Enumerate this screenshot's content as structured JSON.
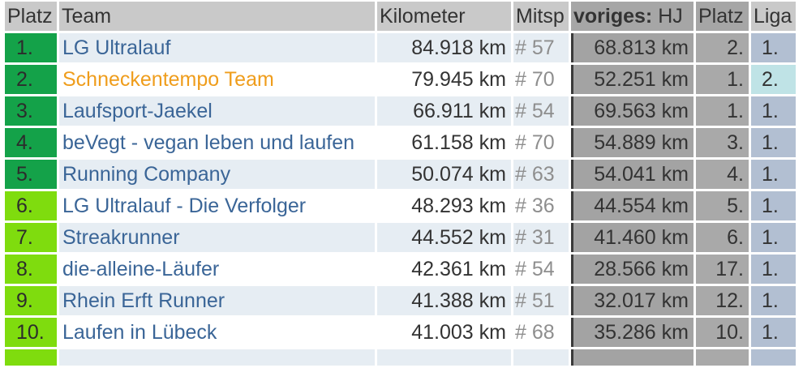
{
  "headers": {
    "platz": "Platz",
    "team": "Team",
    "km": "Kilometer",
    "mitsp": "Mitsp",
    "prev_bold": "voriges:",
    "prev_rest": " HJ",
    "prev_platz": "Platz",
    "liga": "Liga"
  },
  "colors": {
    "dark_green": "#14a249",
    "light_green": "#7fdc0e",
    "team_link": "#3a6597",
    "highlight_team": "#ef9d1c"
  },
  "rows": [
    {
      "platz": "1.",
      "team": "LG Ultralauf",
      "km": "84.918 km",
      "mitsp": "# 57",
      "prev_km": "68.813 km",
      "prev_platz": "2.",
      "liga": "1."
    },
    {
      "platz": "2.",
      "team": "Schneckentempo Team",
      "km": "79.945 km",
      "mitsp": "# 70",
      "prev_km": "52.251 km",
      "prev_platz": "1.",
      "liga": "2."
    },
    {
      "platz": "3.",
      "team": "Laufsport-Jaekel",
      "km": "66.911 km",
      "mitsp": "# 54",
      "prev_km": "69.563 km",
      "prev_platz": "1.",
      "liga": "1."
    },
    {
      "platz": "4.",
      "team": "beVegt - vegan leben und laufen",
      "km": "61.158 km",
      "mitsp": "# 70",
      "prev_km": "54.889 km",
      "prev_platz": "3.",
      "liga": "1."
    },
    {
      "platz": "5.",
      "team": "Running Company",
      "km": "50.074 km",
      "mitsp": "# 63",
      "prev_km": "54.041 km",
      "prev_platz": "4.",
      "liga": "1."
    },
    {
      "platz": "6.",
      "team": "LG Ultralauf - Die Verfolger",
      "km": "48.293 km",
      "mitsp": "# 36",
      "prev_km": "44.554 km",
      "prev_platz": "5.",
      "liga": "1."
    },
    {
      "platz": "7.",
      "team": "Streakrunner",
      "km": "44.552 km",
      "mitsp": "# 31",
      "prev_km": "41.460 km",
      "prev_platz": "6.",
      "liga": "1."
    },
    {
      "platz": "8.",
      "team": "die-alleine-Läufer",
      "km": "42.361 km",
      "mitsp": "# 54",
      "prev_km": "28.566 km",
      "prev_platz": "17.",
      "liga": "1."
    },
    {
      "platz": "9.",
      "team": "Rhein Erft Runner",
      "km": "41.388 km",
      "mitsp": "# 51",
      "prev_km": "32.017 km",
      "prev_platz": "12.",
      "liga": "1."
    },
    {
      "platz": "10.",
      "team": "Laufen in Lübeck",
      "km": "41.003 km",
      "mitsp": "# 68",
      "prev_km": "35.286 km",
      "prev_platz": "10.",
      "liga": "1."
    }
  ]
}
